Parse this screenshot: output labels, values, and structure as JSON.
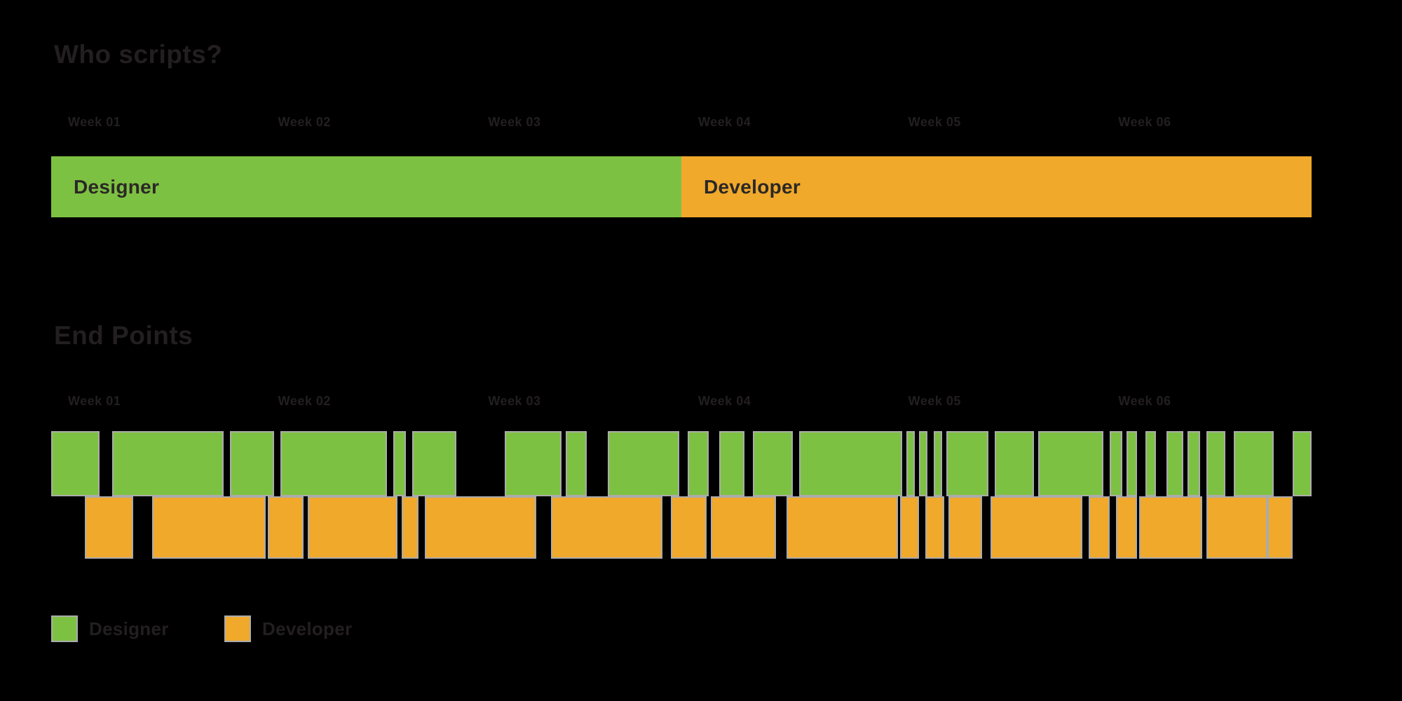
{
  "colors": {
    "designer_green": "#7DC142",
    "developer_orange": "#F0A92B",
    "segment_outline_gray": "#ABABAB",
    "title_text_dark": "#231F20",
    "bar_label_dark": "#2B2826",
    "background": "#000000"
  },
  "legend": {
    "items": [
      {
        "label": "Designer",
        "series": "designer"
      },
      {
        "label": "Developer",
        "series": "developer"
      }
    ]
  },
  "chart_data": {
    "type": "bar",
    "subtype": "timeline-gantt",
    "x_axis": {
      "labels": [
        "Week 01",
        "Week 02",
        "Week 03",
        "Week 04",
        "Week 05",
        "Week 06"
      ],
      "range_weeks": [
        0,
        6
      ],
      "grid": false
    },
    "overview": {
      "title": "Who scripts?",
      "segments": [
        {
          "label": "Designer",
          "series": "designer",
          "start": 0,
          "end": 3
        },
        {
          "label": "Developer",
          "series": "developer",
          "start": 3,
          "end": 6
        }
      ]
    },
    "detail": {
      "title": "End Points",
      "series": [
        {
          "name": "Designer",
          "series": "designer",
          "row": 0,
          "segments": [
            [
              0.0,
              0.23
            ],
            [
              0.29,
              0.82
            ],
            [
              0.85,
              1.06
            ],
            [
              1.09,
              1.6
            ],
            [
              1.63,
              1.69
            ],
            [
              1.72,
              1.93
            ],
            [
              2.16,
              2.43
            ],
            [
              2.45,
              2.55
            ],
            [
              2.65,
              2.99
            ],
            [
              3.03,
              3.13
            ],
            [
              3.18,
              3.3
            ],
            [
              3.34,
              3.53
            ],
            [
              3.56,
              4.05
            ],
            [
              4.07,
              4.11
            ],
            [
              4.13,
              4.17
            ],
            [
              4.2,
              4.24
            ],
            [
              4.26,
              4.46
            ],
            [
              4.49,
              4.68
            ],
            [
              4.7,
              5.01
            ],
            [
              5.04,
              5.1
            ],
            [
              5.12,
              5.17
            ],
            [
              5.21,
              5.26
            ],
            [
              5.31,
              5.39
            ],
            [
              5.41,
              5.47
            ],
            [
              5.5,
              5.59
            ],
            [
              5.63,
              5.82
            ],
            [
              5.91,
              6.0
            ]
          ]
        },
        {
          "name": "Developer",
          "series": "developer",
          "row": 1,
          "segments": [
            [
              0.16,
              0.39
            ],
            [
              0.48,
              1.02
            ],
            [
              1.03,
              1.2
            ],
            [
              1.22,
              1.65
            ],
            [
              1.67,
              1.75
            ],
            [
              1.78,
              2.31
            ],
            [
              2.38,
              2.91
            ],
            [
              2.95,
              3.12
            ],
            [
              3.14,
              3.45
            ],
            [
              3.5,
              4.03
            ],
            [
              4.04,
              4.13
            ],
            [
              4.16,
              4.25
            ],
            [
              4.27,
              4.43
            ],
            [
              4.47,
              4.91
            ],
            [
              4.94,
              5.04
            ],
            [
              5.07,
              5.17
            ],
            [
              5.18,
              5.48
            ],
            [
              5.5,
              5.79
            ],
            [
              5.79,
              5.91
            ]
          ]
        }
      ],
      "legend_position": "bottom-left"
    }
  }
}
